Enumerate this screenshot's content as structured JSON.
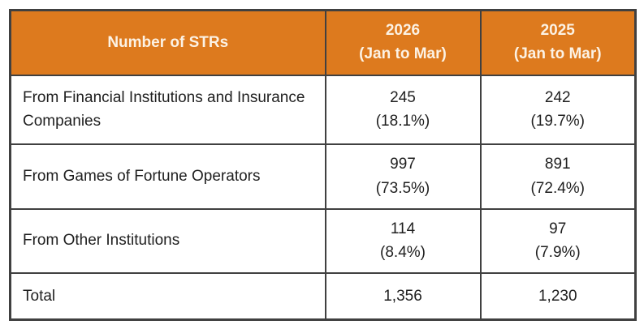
{
  "chart_data": {
    "type": "table",
    "title": "Number of STRs",
    "columns": [
      "Number of STRs",
      "2026 (Jan to Mar)",
      "2025 (Jan to Mar)"
    ],
    "rows": [
      [
        "From Financial Institutions and Insurance Companies",
        "245 (18.1%)",
        "242 (19.7%)"
      ],
      [
        "From Games of Fortune Operators",
        "997 (73.5%)",
        "891 (72.4%)"
      ],
      [
        "From Other Institutions",
        "114 (8.4%)",
        "97 (7.9%)"
      ],
      [
        "Total",
        "1,356",
        "1,230"
      ]
    ]
  },
  "table": {
    "header": {
      "label": "Number of STRs",
      "col2026_year": "2026",
      "col2026_period": "(Jan to Mar)",
      "col2025_year": "2025",
      "col2025_period": "(Jan to Mar)"
    },
    "rows": [
      {
        "label": "From Financial Institutions and Insurance Companies",
        "v2026": "245",
        "p2026": "(18.1%)",
        "v2025": "242",
        "p2025": "(19.7%)"
      },
      {
        "label": "From Games of Fortune Operators",
        "v2026": "997",
        "p2026": "(73.5%)",
        "v2025": "891",
        "p2025": "(72.4%)"
      },
      {
        "label": "From Other Institutions",
        "v2026": "114",
        "p2026": "(8.4%)",
        "v2025": "97",
        "p2025": "(7.9%)"
      }
    ],
    "total": {
      "label": "Total",
      "v2026": "1,356",
      "v2025": "1,230"
    }
  },
  "colors": {
    "header_bg": "#DD7A1E",
    "header_text": "#FCF2E4",
    "border": "#404040",
    "body_text": "#1F1F1F"
  }
}
